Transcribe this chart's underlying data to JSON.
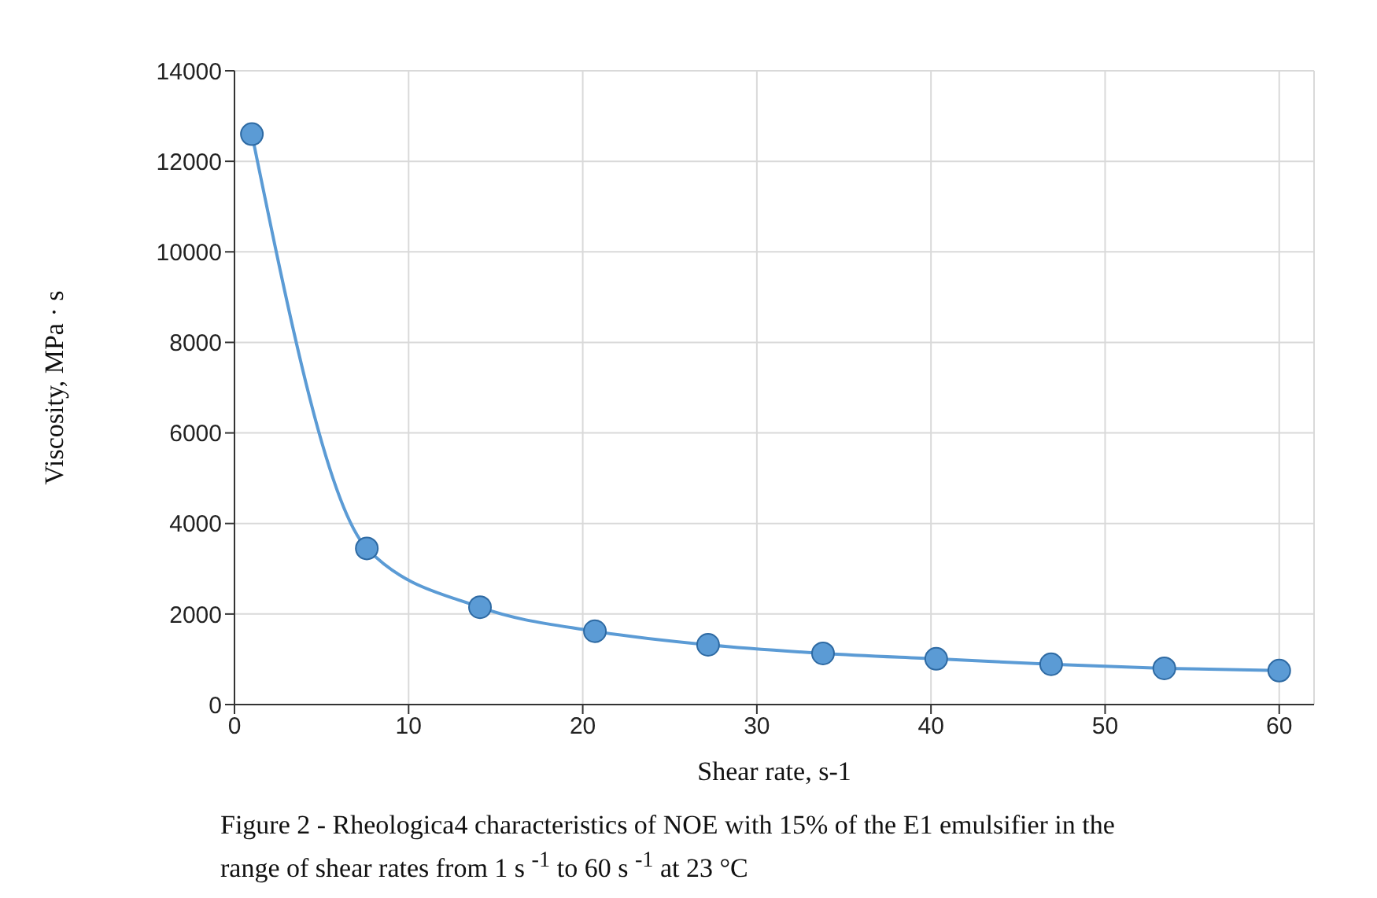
{
  "chart_data": {
    "type": "line",
    "xlabel": "Shear rate, s-1",
    "ylabel": "Viscosity, MPa · s",
    "annotations": [
      "Figure 2 - Rheologica4 characteristics of NOE with 15% of the E1 emulsifier  in the range of shear rates from 1 s $^{-1}$ to 60 s $^{-1}$ at 23  °C"
    ],
    "x": [
      1,
      7.6,
      14.1,
      20.7,
      27.2,
      33.8,
      40.3,
      46.9,
      53.4,
      60
    ],
    "series": [
      {
        "color": "#5b9bd5",
        "values": [
          12600,
          3450,
          2150,
          1620,
          1320,
          1130,
          1010,
          890,
          800,
          750
        ]
      }
    ],
    "xlim": [
      0,
      62
    ],
    "xticks": [
      0,
      10,
      20,
      30,
      40,
      50,
      60
    ],
    "ylim": [
      0,
      14000
    ],
    "yticks": [
      0,
      2000,
      4000,
      6000,
      8000,
      10000,
      12000,
      14000
    ],
    "grid": true,
    "marker": "circle",
    "line_style": "solid",
    "legend": false
  }
}
